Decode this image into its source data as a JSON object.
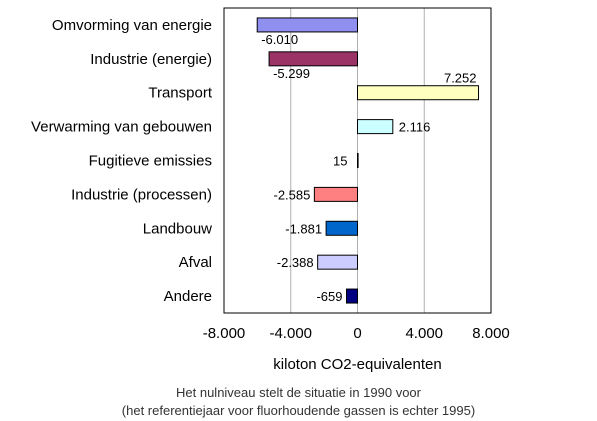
{
  "chart_data": {
    "type": "bar",
    "orientation": "horizontal",
    "categories": [
      "Omvorming van energie",
      "Industrie (energie)",
      "Transport",
      "Verwarming van gebouwen",
      "Fugitieve emissies",
      "Industrie (processen)",
      "Landbouw",
      "Afval",
      "Andere"
    ],
    "values": [
      -6010,
      -5299,
      7252,
      2116,
      15,
      -2585,
      -1881,
      -2388,
      -659
    ],
    "value_labels": [
      "-6.010",
      "-5.299",
      "7.252",
      "2.116",
      "15",
      "-2.585",
      "-1.881",
      "-2.388",
      "-659"
    ],
    "colors": [
      "#8f8ff0",
      "#9b3366",
      "#ffffc0",
      "#ccffff",
      "#660066",
      "#ff8080",
      "#0066cc",
      "#ccccff",
      "#000080"
    ],
    "xlabel": "kiloton CO2-equivalenten",
    "xlim": [
      -8000,
      8000
    ],
    "xticks": [
      -8000,
      -4000,
      0,
      4000,
      8000
    ],
    "xtick_labels": [
      "-8.000",
      "-4.000",
      "0",
      "4.000",
      "8.000"
    ],
    "grid": "vertical"
  },
  "notes": {
    "line1": "Het nulniveau stelt de situatie in 1990 voor",
    "line2": "(het referentiejaar voor fluorhoudende gassen is echter 1995)"
  }
}
